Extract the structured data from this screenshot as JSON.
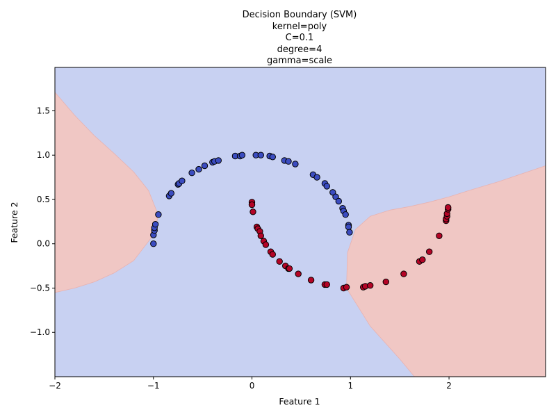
{
  "chart_data": {
    "type": "scatter",
    "title_lines": [
      "Decision Boundary (SVM)",
      "kernel=poly",
      "C=0.1",
      "degree=4",
      "gamma=scale"
    ],
    "xlabel": "Feature 1",
    "ylabel": "Feature 2",
    "xlim": [
      -2,
      2.98
    ],
    "ylim": [
      -1.5,
      1.99
    ],
    "xticks": [
      -2,
      -1,
      0,
      1,
      2
    ],
    "yticks": [
      -1.0,
      -0.5,
      0.0,
      0.5,
      1.0,
      1.5
    ],
    "xtick_labels": [
      "−2",
      "−1",
      "0",
      "1",
      "2"
    ],
    "ytick_labels": [
      "−1.0",
      "−0.5",
      "0.0",
      "0.5",
      "1.0",
      "1.5"
    ],
    "grid": false,
    "legend": "none",
    "colors": {
      "class0_region": "#c8d1f2",
      "class1_region": "#f0c7c4",
      "class0_point": "#3b4cc0",
      "class1_point": "#b40426",
      "point_edge": "#000000"
    },
    "regions": {
      "left_class1_boundary": [
        [
          -2.0,
          1.71
        ],
        [
          -1.8,
          1.45
        ],
        [
          -1.6,
          1.22
        ],
        [
          -1.4,
          1.02
        ],
        [
          -1.2,
          0.81
        ],
        [
          -1.05,
          0.6
        ],
        [
          -0.95,
          0.32
        ],
        [
          -1.0,
          0.1
        ],
        [
          -1.2,
          -0.19
        ],
        [
          -1.4,
          -0.33
        ],
        [
          -1.6,
          -0.43
        ],
        [
          -1.8,
          -0.5
        ],
        [
          -2.0,
          -0.55
        ]
      ],
      "right_class1_boundary": [
        [
          2.98,
          0.88
        ],
        [
          2.5,
          0.7
        ],
        [
          2.2,
          0.6
        ],
        [
          2.0,
          0.53
        ],
        [
          1.8,
          0.47
        ],
        [
          1.6,
          0.42
        ],
        [
          1.4,
          0.38
        ],
        [
          1.2,
          0.31
        ],
        [
          1.05,
          0.16
        ],
        [
          0.97,
          -0.1
        ],
        [
          0.96,
          -0.5
        ],
        [
          1.2,
          -0.93
        ],
        [
          1.5,
          -1.3
        ],
        [
          1.65,
          -1.5
        ],
        [
          2.98,
          -1.5
        ]
      ]
    },
    "series": [
      {
        "class": 0,
        "points": [
          [
            -1.0,
            0.0
          ],
          [
            -1.0,
            0.1
          ],
          [
            -0.99,
            0.15
          ],
          [
            -0.99,
            0.18
          ],
          [
            -0.98,
            0.22
          ],
          [
            -0.95,
            0.33
          ],
          [
            -0.84,
            0.54
          ],
          [
            -0.82,
            0.57
          ],
          [
            -0.75,
            0.67
          ],
          [
            -0.74,
            0.68
          ],
          [
            -0.71,
            0.71
          ],
          [
            -0.61,
            0.8
          ],
          [
            -0.54,
            0.84
          ],
          [
            -0.48,
            0.88
          ],
          [
            -0.4,
            0.92
          ],
          [
            -0.38,
            0.93
          ],
          [
            -0.34,
            0.94
          ],
          [
            -0.17,
            0.99
          ],
          [
            -0.12,
            0.99
          ],
          [
            -0.1,
            1.0
          ],
          [
            0.04,
            1.0
          ],
          [
            0.09,
            1.0
          ],
          [
            0.18,
            0.99
          ],
          [
            0.21,
            0.98
          ],
          [
            0.33,
            0.94
          ],
          [
            0.37,
            0.93
          ],
          [
            0.44,
            0.9
          ],
          [
            0.62,
            0.78
          ],
          [
            0.66,
            0.75
          ],
          [
            0.74,
            0.68
          ],
          [
            0.76,
            0.65
          ],
          [
            0.82,
            0.58
          ],
          [
            0.85,
            0.53
          ],
          [
            0.88,
            0.48
          ],
          [
            0.92,
            0.4
          ],
          [
            0.93,
            0.37
          ],
          [
            0.95,
            0.33
          ],
          [
            0.98,
            0.21
          ],
          [
            0.98,
            0.19
          ],
          [
            0.99,
            0.13
          ]
        ]
      },
      {
        "class": 1,
        "points": [
          [
            0.0,
            0.47
          ],
          [
            0.0,
            0.44
          ],
          [
            0.01,
            0.36
          ],
          [
            0.05,
            0.19
          ],
          [
            0.06,
            0.17
          ],
          [
            0.08,
            0.14
          ],
          [
            0.09,
            0.09
          ],
          [
            0.12,
            0.03
          ],
          [
            0.14,
            -0.01
          ],
          [
            0.19,
            -0.09
          ],
          [
            0.21,
            -0.12
          ],
          [
            0.28,
            -0.2
          ],
          [
            0.34,
            -0.25
          ],
          [
            0.37,
            -0.28
          ],
          [
            0.38,
            -0.28
          ],
          [
            0.47,
            -0.34
          ],
          [
            0.6,
            -0.41
          ],
          [
            0.74,
            -0.46
          ],
          [
            0.76,
            -0.46
          ],
          [
            0.93,
            -0.5
          ],
          [
            0.96,
            -0.49
          ],
          [
            1.13,
            -0.49
          ],
          [
            1.15,
            -0.48
          ],
          [
            1.2,
            -0.47
          ],
          [
            1.36,
            -0.43
          ],
          [
            1.54,
            -0.34
          ],
          [
            1.7,
            -0.2
          ],
          [
            1.73,
            -0.18
          ],
          [
            1.8,
            -0.09
          ],
          [
            1.9,
            0.09
          ],
          [
            1.97,
            0.26
          ],
          [
            1.97,
            0.28
          ],
          [
            1.98,
            0.31
          ],
          [
            1.98,
            0.34
          ],
          [
            1.99,
            0.39
          ],
          [
            1.99,
            0.41
          ]
        ]
      }
    ]
  }
}
